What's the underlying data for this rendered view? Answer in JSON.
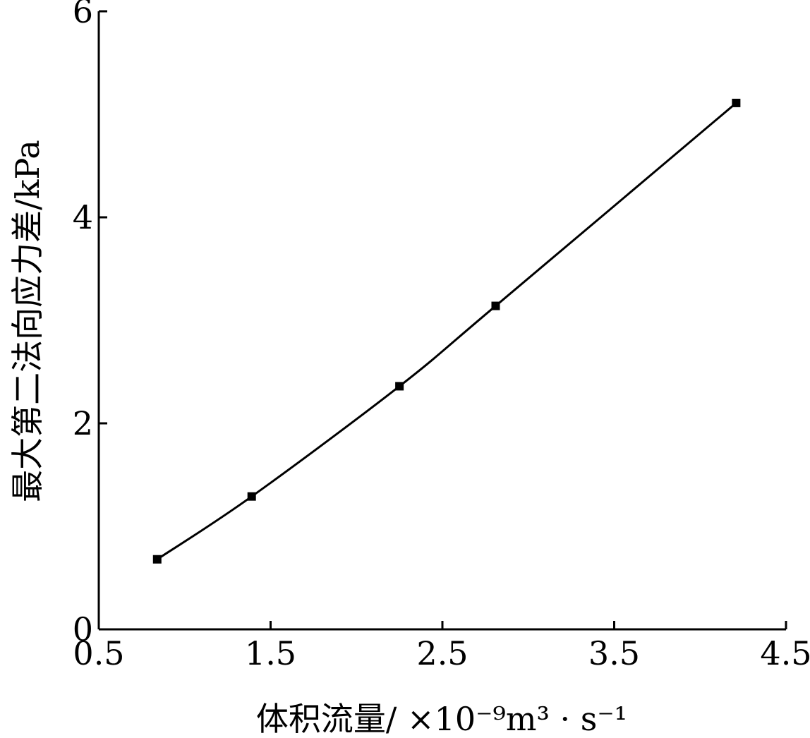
{
  "chart_data": {
    "type": "line",
    "xlabel": "体积流量/ ×10⁻⁹m³ · s⁻¹",
    "ylabel": "最大第二法向应力差/kPa",
    "xlim": [
      0.5,
      4.5
    ],
    "ylim": [
      0,
      6
    ],
    "xticks": [
      "0.5",
      "1.5",
      "2.5",
      "3.5",
      "4.5"
    ],
    "xtick_values": [
      0.5,
      1.5,
      2.5,
      3.5,
      4.5
    ],
    "yticks": [
      "0",
      "2",
      "4",
      "6"
    ],
    "ytick_values": [
      0,
      2,
      4,
      6
    ],
    "grid": false,
    "series": [
      {
        "marker": "square",
        "color": "#000000",
        "x": [
          0.84,
          1.39,
          2.25,
          2.81,
          4.21
        ],
        "y": [
          0.68,
          1.29,
          2.36,
          3.14,
          5.11
        ]
      }
    ]
  }
}
